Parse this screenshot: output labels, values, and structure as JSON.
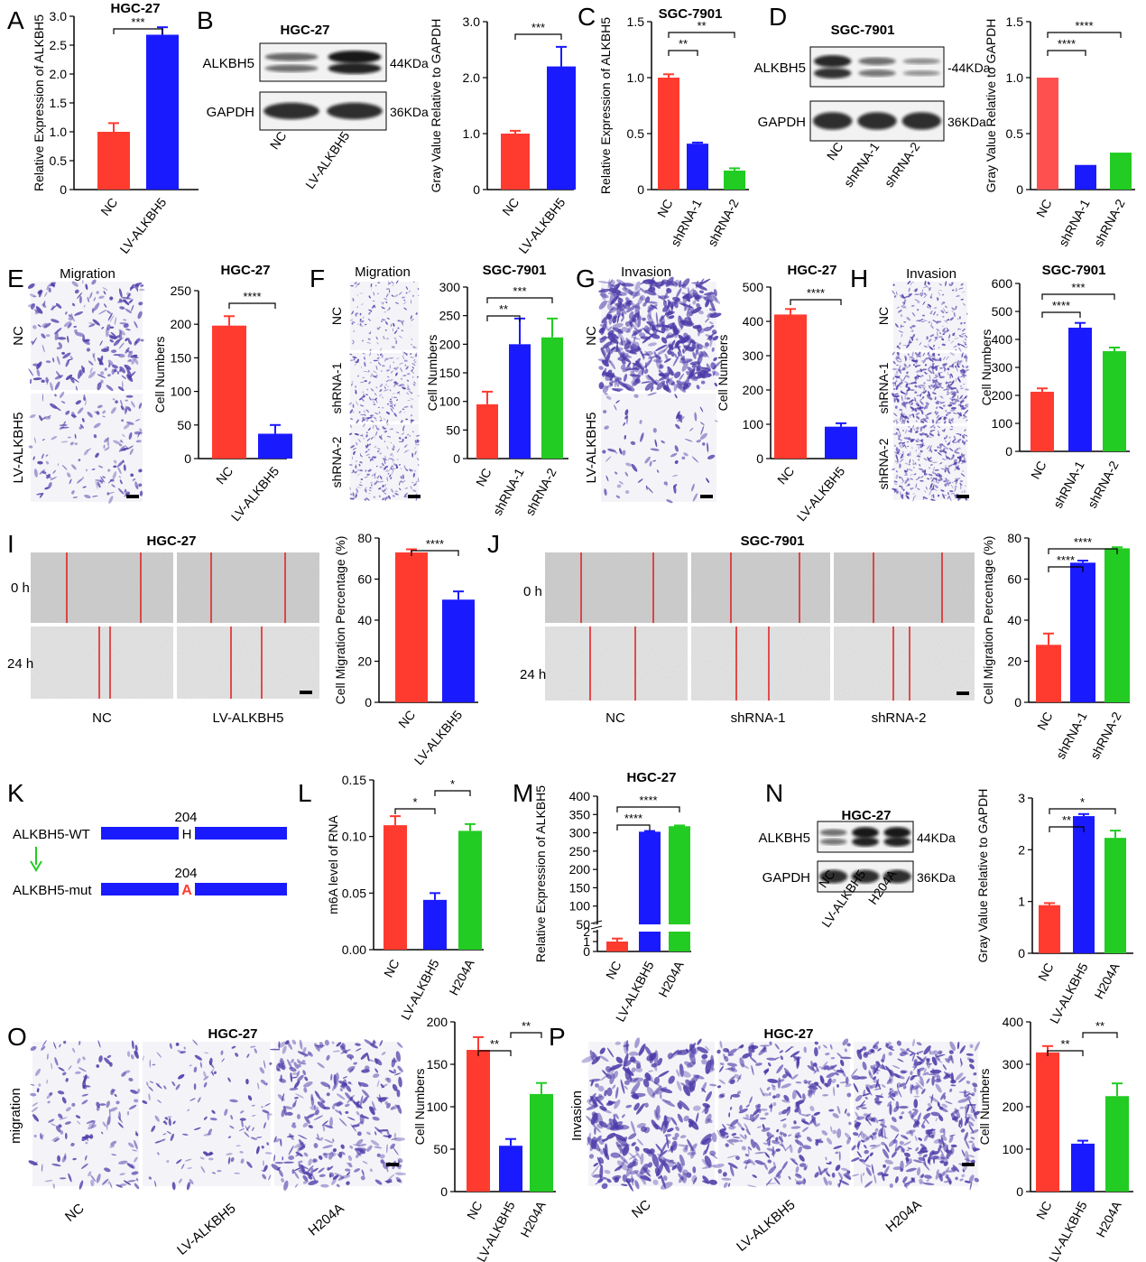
{
  "colors": {
    "red": "#ff3b30",
    "blue": "#1a1aff",
    "green": "#22cc22",
    "pink": "#ff5050",
    "blot_bg": "#f2f2f2",
    "stain": "#4b3aa8",
    "wound_line": "#e01b1b"
  },
  "panels": {
    "A": {
      "letter": "A"
    },
    "B": {
      "letter": "B"
    },
    "C": {
      "letter": "C"
    },
    "D": {
      "letter": "D"
    },
    "E": {
      "letter": "E"
    },
    "F": {
      "letter": "F"
    },
    "G": {
      "letter": "G"
    },
    "H": {
      "letter": "H"
    },
    "I": {
      "letter": "I"
    },
    "J": {
      "letter": "J"
    },
    "K": {
      "letter": "K"
    },
    "L": {
      "letter": "L"
    },
    "M": {
      "letter": "M"
    },
    "N": {
      "letter": "N"
    },
    "O": {
      "letter": "O"
    },
    "P": {
      "letter": "P"
    }
  },
  "blots": {
    "B": {
      "title": "HGC-27",
      "bands": [
        "ALKBH5",
        "GAPDH"
      ],
      "sizes": [
        "44KDa",
        "36KDa"
      ],
      "lanes": [
        "NC",
        "LV-ALKBH5"
      ]
    },
    "D": {
      "title": "SGC-7901",
      "bands": [
        "ALKBH5",
        "GAPDH"
      ],
      "sizes": [
        "-44KDa",
        "36KDa"
      ],
      "lanes": [
        "NC",
        "shRNA-1",
        "shRNA-2"
      ]
    },
    "N": {
      "title": "HGC-27",
      "bands": [
        "ALKBH5",
        "GAPDH"
      ],
      "sizes": [
        "44KDa",
        "36KDa"
      ],
      "lanes": [
        "NC",
        "LV-ALKBH5",
        "H204A"
      ]
    }
  },
  "micro": {
    "E": {
      "title": "Migration",
      "rows": [
        "NC",
        "LV-ALKBH5"
      ]
    },
    "F": {
      "title": "Migration",
      "rows": [
        "NC",
        "shRNA-1",
        "shRNA-2"
      ]
    },
    "G": {
      "title": "Invasion",
      "rows": [
        "NC",
        "LV-ALKBH5"
      ]
    },
    "H": {
      "title": "Invasion",
      "rows": [
        "NC",
        "shRNA-1",
        "shRNA-2"
      ]
    },
    "I": {
      "title": "HGC-27",
      "rows": [
        "0 h",
        "24 h"
      ],
      "cols": [
        "NC",
        "LV-ALKBH5"
      ]
    },
    "J": {
      "title": "SGC-7901",
      "rows": [
        "0 h",
        "24 h"
      ],
      "cols": [
        "NC",
        "shRNA-1",
        "shRNA-2"
      ]
    },
    "O": {
      "title": "HGC-27",
      "side": "migration",
      "cols": [
        "NC",
        "LV-ALKBH5",
        "H204A"
      ]
    },
    "P": {
      "title": "HGC-27",
      "side": "Invasion",
      "cols": [
        "NC",
        "LV-ALKBH5",
        "H204A"
      ]
    }
  },
  "schematic": {
    "wt_label": "ALKBH5-WT",
    "mut_label": "ALKBH5-mut",
    "position": "204",
    "wt_residue": "H",
    "mut_residue": "A"
  },
  "chart_data": [
    {
      "id": "A",
      "type": "bar",
      "title": "HGC-27",
      "ylabel": "Relative Expression of ALKBH5",
      "categories": [
        "NC",
        "LV-ALKBH5"
      ],
      "values": [
        1.0,
        2.68
      ],
      "errors": [
        0.15,
        0.13
      ],
      "ylim": [
        0,
        3.0
      ],
      "yticks": [
        "0",
        "0.5",
        "1.0",
        "1.5",
        "2.0",
        "2.5",
        "3.0"
      ],
      "colors": [
        "red",
        "blue"
      ],
      "sig": [
        {
          "from": 0,
          "to": 1,
          "label": "***"
        }
      ]
    },
    {
      "id": "B",
      "type": "bar",
      "title": "",
      "ylabel": "Gray Value Relative to GAPDH",
      "categories": [
        "NC",
        "LV-ALKBH5"
      ],
      "values": [
        1.0,
        2.2
      ],
      "errors": [
        0.05,
        0.35
      ],
      "ylim": [
        0,
        3.0
      ],
      "yticks": [
        "0",
        "1.0",
        "2.0",
        "3.0"
      ],
      "colors": [
        "red",
        "blue"
      ],
      "sig": [
        {
          "from": 0,
          "to": 1,
          "label": "***"
        }
      ]
    },
    {
      "id": "C",
      "type": "bar",
      "title": "SGC-7901",
      "ylabel": "Relative Expression of ALKBH5",
      "categories": [
        "NC",
        "shRNA-1",
        "shRNA-2"
      ],
      "values": [
        1.0,
        0.41,
        0.17
      ],
      "errors": [
        0.03,
        0.01,
        0.02
      ],
      "ylim": [
        0,
        1.5
      ],
      "yticks": [
        "0",
        "0.5",
        "1.0",
        "1.5"
      ],
      "colors": [
        "red",
        "blue",
        "green"
      ],
      "sig": [
        {
          "from": 0,
          "to": 1,
          "label": "**"
        },
        {
          "from": 0,
          "to": 2,
          "label": "**"
        }
      ]
    },
    {
      "id": "D",
      "type": "bar",
      "title": "",
      "ylabel": "Gray Value Relative to GAPDH",
      "categories": [
        "NC",
        "shRNA-1",
        "shRNA-2"
      ],
      "values": [
        1.0,
        0.22,
        0.33
      ],
      "errors": [
        0.0,
        0.0,
        0.0
      ],
      "ylim": [
        0,
        1.5
      ],
      "yticks": [
        "0",
        "0.5",
        "1.0",
        "1.5"
      ],
      "colors": [
        "pink",
        "blue",
        "green"
      ],
      "sig": [
        {
          "from": 0,
          "to": 1,
          "label": "****"
        },
        {
          "from": 0,
          "to": 2,
          "label": "****"
        }
      ]
    },
    {
      "id": "E",
      "type": "bar",
      "title": "HGC-27",
      "ylabel": "Cell Numbers",
      "categories": [
        "NC",
        "LV-ALKBH5"
      ],
      "values": [
        198,
        37
      ],
      "errors": [
        14,
        13
      ],
      "ylim": [
        0,
        250
      ],
      "yticks": [
        "0",
        "50",
        "100",
        "150",
        "200",
        "250"
      ],
      "colors": [
        "red",
        "blue"
      ],
      "sig": [
        {
          "from": 0,
          "to": 1,
          "label": "****"
        }
      ]
    },
    {
      "id": "F",
      "type": "bar",
      "title": "SGC-7901",
      "ylabel": "Cell Numbers",
      "categories": [
        "NC",
        "shRNA-1",
        "shRNA-2"
      ],
      "values": [
        95,
        200,
        212
      ],
      "errors": [
        22,
        45,
        33
      ],
      "ylim": [
        0,
        300
      ],
      "yticks": [
        "0",
        "50",
        "100",
        "150",
        "200",
        "250",
        "300"
      ],
      "colors": [
        "red",
        "blue",
        "green"
      ],
      "sig": [
        {
          "from": 0,
          "to": 1,
          "label": "**"
        },
        {
          "from": 0,
          "to": 2,
          "label": "***"
        }
      ]
    },
    {
      "id": "G",
      "type": "bar",
      "title": "HGC-27",
      "ylabel": "Cell Numbers",
      "categories": [
        "NC",
        "LV-ALKBH5"
      ],
      "values": [
        420,
        93
      ],
      "errors": [
        16,
        10
      ],
      "ylim": [
        0,
        500
      ],
      "yticks": [
        "0",
        "100",
        "200",
        "300",
        "400",
        "500"
      ],
      "colors": [
        "red",
        "blue"
      ],
      "sig": [
        {
          "from": 0,
          "to": 1,
          "label": "****"
        }
      ]
    },
    {
      "id": "H",
      "type": "bar",
      "title": "SGC-7901",
      "ylabel": "Cell Numbers",
      "categories": [
        "NC",
        "shRNA-1",
        "shRNA-2"
      ],
      "values": [
        213,
        442,
        358
      ],
      "errors": [
        12,
        17,
        13
      ],
      "ylim": [
        0,
        600
      ],
      "yticks": [
        "0",
        "100",
        "200",
        "300",
        "400",
        "500",
        "600"
      ],
      "colors": [
        "red",
        "blue",
        "green"
      ],
      "sig": [
        {
          "from": 0,
          "to": 1,
          "label": "****"
        },
        {
          "from": 0,
          "to": 2,
          "label": "***"
        }
      ]
    },
    {
      "id": "I",
      "type": "bar",
      "title": "",
      "ylabel": "Cell Migration Percentage (%)",
      "categories": [
        "NC",
        "LV-ALKBH5"
      ],
      "values": [
        73,
        50
      ],
      "errors": [
        1.5,
        4
      ],
      "ylim": [
        0,
        80
      ],
      "yticks": [
        "0",
        "20",
        "40",
        "60",
        "80"
      ],
      "colors": [
        "red",
        "blue"
      ],
      "sig": [
        {
          "from": 0,
          "to": 1,
          "label": "****"
        }
      ]
    },
    {
      "id": "J",
      "type": "bar",
      "title": "",
      "ylabel": "Cell Migration Percentage (%)",
      "categories": [
        "NC",
        "shRNA-1",
        "shRNA-2"
      ],
      "values": [
        28,
        68,
        75
      ],
      "errors": [
        5.5,
        1,
        0.5
      ],
      "ylim": [
        0,
        80
      ],
      "yticks": [
        "0",
        "20",
        "40",
        "60",
        "80"
      ],
      "colors": [
        "red",
        "blue",
        "green"
      ],
      "sig": [
        {
          "from": 0,
          "to": 1,
          "label": "****"
        },
        {
          "from": 0,
          "to": 2,
          "label": "****"
        }
      ]
    },
    {
      "id": "L",
      "type": "bar",
      "title": "",
      "ylabel": "m6A level of RNA",
      "categories": [
        "NC",
        "LV-ALKBH5",
        "H204A"
      ],
      "values": [
        0.11,
        0.044,
        0.105
      ],
      "errors": [
        0.008,
        0.006,
        0.006
      ],
      "ylim": [
        0,
        0.15
      ],
      "yticks": [
        "0.00",
        "0.05",
        "0.10",
        "0.15"
      ],
      "colors": [
        "red",
        "blue",
        "green"
      ],
      "sig": [
        {
          "from": 0,
          "to": 1,
          "label": "*"
        },
        {
          "from": 1,
          "to": 2,
          "label": "*"
        }
      ]
    },
    {
      "id": "M",
      "type": "bar",
      "title": "HGC-27",
      "ylabel": "Relative Expression of ALKBH5",
      "categories": [
        "NC",
        "LV-ALKBH5",
        "H204A"
      ],
      "values": [
        1.0,
        303,
        318
      ],
      "errors": [
        0.3,
        2,
        2
      ],
      "axis_break": [
        2,
        50
      ],
      "ylim": [
        0,
        400
      ],
      "yticks": [
        "0",
        "1",
        "2",
        "50",
        "100",
        "150",
        "200",
        "250",
        "300",
        "350",
        "400"
      ],
      "colors": [
        "red",
        "blue",
        "green"
      ],
      "sig": [
        {
          "from": 0,
          "to": 1,
          "label": "****"
        },
        {
          "from": 0,
          "to": 2,
          "label": "****"
        }
      ]
    },
    {
      "id": "N",
      "type": "bar",
      "title": "",
      "ylabel": "Gray Value Relative to GAPDH",
      "categories": [
        "NC",
        "LV-ALKBH5",
        "H204A"
      ],
      "values": [
        0.93,
        2.65,
        2.23
      ],
      "errors": [
        0.04,
        0.04,
        0.14
      ],
      "ylim": [
        0,
        3
      ],
      "yticks": [
        "0",
        "1",
        "2",
        "3"
      ],
      "colors": [
        "red",
        "blue",
        "green"
      ],
      "sig": [
        {
          "from": 0,
          "to": 1,
          "label": "**"
        },
        {
          "from": 0,
          "to": 2,
          "label": "*"
        }
      ]
    },
    {
      "id": "O",
      "type": "bar",
      "title": "",
      "ylabel": "Cell Numbers",
      "categories": [
        "NC",
        "LV-ALKBH5",
        "H204A"
      ],
      "values": [
        167,
        54,
        115
      ],
      "errors": [
        15,
        8,
        13
      ],
      "ylim": [
        0,
        200
      ],
      "yticks": [
        "0",
        "50",
        "100",
        "150",
        "200"
      ],
      "colors": [
        "red",
        "blue",
        "green"
      ],
      "sig": [
        {
          "from": 0,
          "to": 1,
          "label": "**"
        },
        {
          "from": 1,
          "to": 2,
          "label": "**"
        }
      ]
    },
    {
      "id": "P",
      "type": "bar",
      "title": "",
      "ylabel": "Cell Numbers",
      "categories": [
        "NC",
        "LV-ALKBH5",
        "H204A"
      ],
      "values": [
        328,
        113,
        225
      ],
      "errors": [
        15,
        7,
        30
      ],
      "ylim": [
        0,
        400
      ],
      "yticks": [
        "0",
        "100",
        "200",
        "300",
        "400"
      ],
      "colors": [
        "red",
        "blue",
        "green"
      ],
      "sig": [
        {
          "from": 0,
          "to": 1,
          "label": "**"
        },
        {
          "from": 1,
          "to": 2,
          "label": "**"
        }
      ]
    }
  ]
}
